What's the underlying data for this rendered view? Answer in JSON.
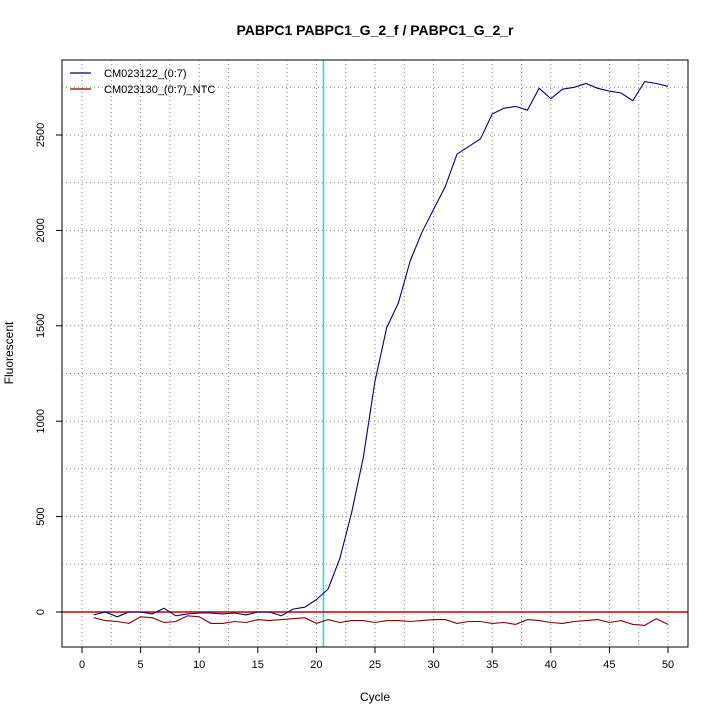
{
  "chart_data": {
    "type": "line",
    "title": "PABPC1  PABPC1_G_2_f / PABPC1_G_2_r",
    "xlabel": "Cycle",
    "ylabel": "Fluorescent",
    "xlim": [
      0,
      52
    ],
    "ylim": [
      -180,
      2900
    ],
    "x_ticks": [
      0,
      5,
      10,
      15,
      20,
      25,
      30,
      35,
      40,
      45,
      50
    ],
    "y_ticks": [
      0,
      500,
      1000,
      1500,
      2000,
      2500
    ],
    "grid": "dotted",
    "legend_position": "top-left",
    "threshold_cycle": 20.6,
    "threshold_color": "#00e5ee",
    "baseline_color": "#cc0000",
    "series": [
      {
        "name": "CM023122_(0:7)",
        "color": "#000080",
        "x": [
          1,
          2,
          3,
          4,
          5,
          6,
          7,
          8,
          9,
          10,
          11,
          12,
          13,
          14,
          15,
          16,
          17,
          18,
          19,
          20,
          21,
          22,
          23,
          24,
          25,
          26,
          27,
          28,
          29,
          30,
          31,
          32,
          33,
          34,
          35,
          36,
          37,
          38,
          39,
          40,
          41,
          42,
          43,
          44,
          45,
          46,
          47,
          48,
          49,
          50
        ],
        "y": [
          -15,
          0,
          -25,
          0,
          0,
          -10,
          20,
          -20,
          -10,
          -5,
          -5,
          -10,
          -5,
          -15,
          0,
          0,
          -20,
          15,
          25,
          65,
          120,
          280,
          520,
          810,
          1210,
          1490,
          1620,
          1840,
          1990,
          2110,
          2230,
          2400,
          2440,
          2480,
          2610,
          2640,
          2650,
          2630,
          2745,
          2690,
          2740,
          2750,
          2770,
          2745,
          2730,
          2720,
          2680,
          2780,
          2770,
          2755
        ]
      },
      {
        "name": "CM023130_(0:7)_NTC",
        "color": "#8b0000",
        "x": [
          1,
          2,
          3,
          4,
          5,
          6,
          7,
          8,
          9,
          10,
          11,
          12,
          13,
          14,
          15,
          16,
          17,
          18,
          19,
          20,
          21,
          22,
          23,
          24,
          25,
          26,
          27,
          28,
          29,
          30,
          31,
          32,
          33,
          34,
          35,
          36,
          37,
          38,
          39,
          40,
          41,
          42,
          43,
          44,
          45,
          46,
          47,
          48,
          49,
          50
        ],
        "y": [
          -30,
          -45,
          -50,
          -60,
          -25,
          -30,
          -55,
          -50,
          -20,
          -25,
          -60,
          -60,
          -50,
          -55,
          -40,
          -45,
          -40,
          -35,
          -30,
          -60,
          -40,
          -55,
          -45,
          -45,
          -55,
          -45,
          -45,
          -50,
          -45,
          -40,
          -40,
          -60,
          -50,
          -50,
          -60,
          -55,
          -65,
          -40,
          -45,
          -55,
          -60,
          -50,
          -45,
          -40,
          -55,
          -45,
          -65,
          -70,
          -35,
          -65
        ]
      }
    ]
  }
}
